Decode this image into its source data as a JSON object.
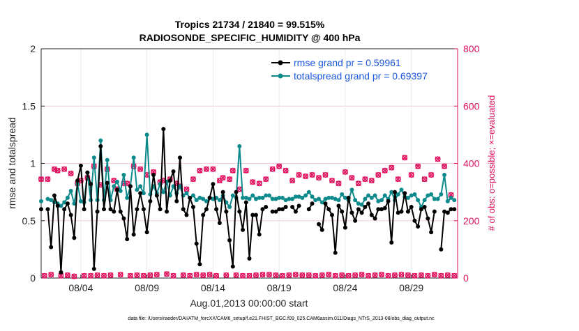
{
  "chart_data": {
    "type": "line",
    "title": [
      "Tropics 21734 / 21840 = 99.515%",
      "RADIOSONDE_SPECIFIC_HUMIDITY @ 400 hPa"
    ],
    "xlabel": "Aug.01,2013 00:00:00 start",
    "ylabel": "rmse and totalspread",
    "y2label": "# of obs: o=possible; ×=evaluated",
    "footnote": "data file: /Users/raeder/DAI/ATM_forcXX/CAM6_setup/f.e21.FHIST_BGC.f09_025.CAM6assim.011/Diags_NTrS_2013-08/obs_diag_output.nc",
    "xlim": [
      1,
      32.5
    ],
    "ylim": [
      0,
      2
    ],
    "y2lim": [
      0,
      800
    ],
    "xticks": [
      4,
      9,
      14,
      19,
      24,
      29
    ],
    "xticklabels": [
      "08/04",
      "08/09",
      "08/14",
      "08/19",
      "08/24",
      "08/29"
    ],
    "yticks": [
      0,
      0.5,
      1,
      1.5,
      2
    ],
    "yticklabels": [
      "0",
      "0.5",
      "1",
      "1.5",
      "2"
    ],
    "y2ticks": [
      0,
      200,
      400,
      600,
      800
    ],
    "y2ticklabels": [
      "0",
      "200",
      "400",
      "600",
      "800"
    ],
    "legend_location": "top-right",
    "x": [
      1.0,
      1.25,
      1.5,
      1.75,
      2.0,
      2.25,
      2.5,
      2.75,
      3.0,
      3.25,
      3.5,
      3.75,
      4.0,
      4.25,
      4.5,
      4.75,
      5.0,
      5.25,
      5.5,
      5.75,
      6.0,
      6.25,
      6.5,
      6.75,
      7.0,
      7.25,
      7.5,
      7.75,
      8.0,
      8.25,
      8.5,
      8.75,
      9.0,
      9.25,
      9.5,
      9.75,
      10.0,
      10.25,
      10.5,
      10.75,
      11.0,
      11.25,
      11.5,
      11.75,
      12.0,
      12.25,
      12.5,
      12.75,
      13.0,
      13.25,
      13.5,
      13.75,
      14.0,
      14.25,
      14.5,
      14.75,
      15.0,
      15.25,
      15.5,
      15.75,
      16.0,
      16.25,
      16.5,
      16.75,
      17.0,
      17.25,
      17.5,
      17.75,
      18.0,
      18.25,
      18.5,
      18.75,
      19.0,
      19.25,
      19.5,
      19.75,
      20.0,
      20.25,
      20.5,
      20.75,
      21.0,
      21.25,
      21.5,
      21.75,
      22.0,
      22.25,
      22.5,
      22.75,
      23.0,
      23.25,
      23.5,
      23.75,
      24.0,
      24.25,
      24.5,
      24.75,
      25.0,
      25.25,
      25.5,
      25.75,
      26.0,
      26.25,
      26.5,
      26.75,
      27.0,
      27.25,
      27.5,
      27.75,
      28.0,
      28.25,
      28.5,
      28.75,
      29.0,
      29.25,
      29.5,
      29.75,
      30.0,
      30.25,
      30.5,
      30.75,
      31.0,
      31.25,
      31.5,
      31.75,
      32.0,
      32.25
    ],
    "series": [
      {
        "name": "rmse grand pr = 0.59961",
        "color": "#000000",
        "values": [
          0.6,
          null,
          0.6,
          0.27,
          0.72,
          0.63,
          0.05,
          0.6,
          0.65,
          0.55,
          0.35,
          0.85,
          0.98,
          0.6,
          0.92,
          0.82,
          0.08,
          0.58,
          1.15,
          0.6,
          0.83,
          0.6,
          0.58,
          0.77,
          0.58,
          0.52,
          0.34,
          0.8,
          0.38,
          0.6,
          0.74,
          0.6,
          0.4,
          0.67,
          0.9,
          0.72,
          0.6,
          1.3,
          0.58,
          0.85,
          0.93,
          0.67,
          1.05,
          0.6,
          0.55,
          0.7,
          0.62,
          0.3,
          0.12,
          0.55,
          0.6,
          0.7,
          0.82,
          0.6,
          0.48,
          0.75,
          0.58,
          0.33,
          0.1,
          0.75,
          0.58,
          0.42,
          0.66,
          0.17,
          0.55,
          0.55,
          0.38,
          0.6,
          0.62,
          null,
          0.58,
          0.58,
          0.6,
          0.6,
          0.62,
          null,
          0.62,
          0.58,
          0.63,
          null,
          null,
          0.6,
          0.65,
          null,
          0.47,
          0.42,
          0.65,
          0.6,
          0.55,
          0.22,
          0.63,
          0.58,
          0.44,
          0.7,
          0.57,
          0.5,
          0.6,
          0.57,
          0.62,
          0.65,
          0.55,
          0.52,
          0.6,
          0.6,
          0.61,
          0.67,
          0.31,
          0.75,
          0.57,
          0.58,
          0.74,
          0.58,
          0.62,
          0.5,
          0.45,
          0.6,
          0.62,
          0.52,
          0.4,
          0.58,
          null,
          0.25,
          0.58,
          0.57,
          0.6,
          0.6
        ]
      },
      {
        "name": "totalspread grand pr = 0.69397",
        "color": "#0c8a8c",
        "values": [
          0.67,
          null,
          0.69,
          0.68,
          0.66,
          0.65,
          0.63,
          0.66,
          0.7,
          0.76,
          0.65,
          0.82,
          0.67,
          0.66,
          0.92,
          0.68,
          1.05,
          0.68,
          1.2,
          0.68,
          1.03,
          0.68,
          0.8,
          0.84,
          0.76,
          0.9,
          0.7,
          0.8,
          1.05,
          0.77,
          0.8,
          0.74,
          1.25,
          0.73,
          0.8,
          0.74,
          0.82,
          0.75,
          0.84,
          0.72,
          0.8,
          0.74,
          0.8,
          0.72,
          0.74,
          0.7,
          0.72,
          0.68,
          0.7,
          0.69,
          0.67,
          0.7,
          0.69,
          0.7,
          0.68,
          0.72,
          0.66,
          0.62,
          0.72,
          0.7,
          1.15,
          0.7,
          0.7,
          0.69,
          0.72,
          0.69,
          0.7,
          0.7,
          0.72,
          0.72,
          0.69,
          0.69,
          0.7,
          0.7,
          0.68,
          0.69,
          0.69,
          0.71,
          0.71,
          0.7,
          0.72,
          0.75,
          0.71,
          0.68,
          0.69,
          0.66,
          0.69,
          0.7,
          0.7,
          0.69,
          0.68,
          0.73,
          0.7,
          0.68,
          0.77,
          0.68,
          0.65,
          0.64,
          0.69,
          0.72,
          0.7,
          0.72,
          0.67,
          0.68,
          0.72,
          0.69,
          0.75,
          0.68,
          0.73,
          0.77,
          0.71,
          0.7,
          0.72,
          0.73,
          0.68,
          0.62,
          0.68,
          0.72,
          0.73,
          0.69,
          0.69,
          0.73,
          0.9,
          0.67,
          0.7,
          0.68
        ]
      }
    ],
    "obs_possible": {
      "name": "possible",
      "color": "#e0115f",
      "values": [
        345,
        8,
        345,
        12,
        380,
        375,
        8,
        380,
        10,
        365,
        6,
        330,
        340,
        8,
        350,
        8,
        390,
        10,
        325,
        8,
        380,
        10,
        340,
        310,
        12,
        330,
        330,
        8,
        390,
        10,
        380,
        8,
        360,
        10,
        370,
        12,
        335,
        340,
        14,
        345,
        8,
        330,
        320,
        10,
        310,
        8,
        345,
        12,
        375,
        10,
        380,
        12,
        380,
        8,
        340,
        350,
        10,
        345,
        375,
        10,
        310,
        8,
        375,
        8,
        335,
        10,
        330,
        12,
        345,
        12,
        380,
        10,
        390,
        8,
        375,
        10,
        340,
        12,
        360,
        10,
        355,
        10,
        360,
        8,
        350,
        10,
        360,
        12,
        340,
        8,
        330,
        10,
        370,
        8,
        350,
        10,
        330,
        12,
        345,
        8,
        340,
        10,
        360,
        12,
        375,
        8,
        385,
        10,
        345,
        12,
        420,
        10,
        360,
        8,
        390,
        10,
        345,
        8,
        360,
        12,
        415,
        8,
        390,
        10,
        290,
        8
      ]
    },
    "obs_evaluated": {
      "name": "evaluated",
      "color": "#e0115f",
      "values": [
        345,
        8,
        345,
        12,
        380,
        375,
        8,
        380,
        10,
        365,
        6,
        330,
        340,
        8,
        350,
        8,
        390,
        10,
        325,
        8,
        380,
        10,
        340,
        310,
        12,
        330,
        330,
        8,
        390,
        10,
        380,
        8,
        360,
        10,
        370,
        12,
        335,
        340,
        14,
        345,
        8,
        330,
        320,
        10,
        310,
        8,
        345,
        12,
        375,
        10,
        380,
        12,
        380,
        8,
        340,
        350,
        10,
        345,
        375,
        10,
        310,
        8,
        375,
        8,
        335,
        10,
        330,
        12,
        345,
        12,
        380,
        10,
        390,
        8,
        375,
        10,
        340,
        12,
        360,
        10,
        355,
        10,
        360,
        8,
        350,
        10,
        360,
        12,
        340,
        8,
        330,
        10,
        370,
        8,
        350,
        10,
        330,
        12,
        345,
        8,
        340,
        10,
        360,
        12,
        375,
        8,
        385,
        10,
        345,
        12,
        420,
        10,
        360,
        8,
        390,
        10,
        345,
        8,
        360,
        12,
        415,
        8,
        390,
        10,
        290,
        8
      ]
    }
  }
}
